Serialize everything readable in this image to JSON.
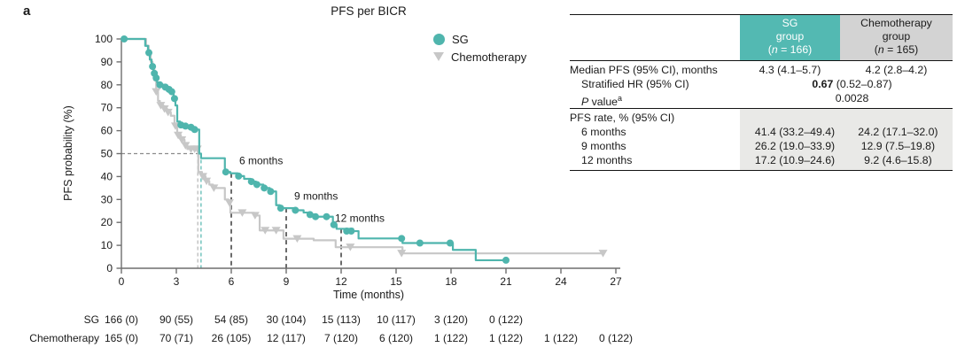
{
  "panel_label": "a",
  "colors": {
    "sg": "#4fb5ad",
    "chemotherapy": "#c7c7c7",
    "sg_header_bg": "#53b9b2",
    "chemo_header_bg": "#d3d3d3",
    "rate_section_shade": "#e9e9e7",
    "landmark_dash": "#3a3a3a",
    "median_dash_gray": "#b5b5b5",
    "median_dash_teal": "#4fb5ad",
    "fifty_pct_dash": "#8c8c8c"
  },
  "chart_data": {
    "type": "line",
    "subtype": "kaplan-meier-step",
    "title": "PFS per BICR",
    "xlabel": "Time (months)",
    "ylabel": "PFS probability (%)",
    "xlim": [
      0,
      27
    ],
    "ylim": [
      0,
      100
    ],
    "xticks": [
      0,
      3,
      6,
      9,
      12,
      15,
      18,
      21,
      24,
      27
    ],
    "yticks": [
      0,
      10,
      20,
      30,
      40,
      50,
      60,
      70,
      80,
      90,
      100
    ],
    "grid": false,
    "legend_position": "top-right-inside",
    "legend": [
      {
        "label": "SG",
        "marker": "circle",
        "color": "#4fb5ad"
      },
      {
        "label": "Chemotherapy",
        "marker": "triangle-down",
        "color": "#c7c7c7"
      }
    ],
    "series": [
      {
        "id": "sg",
        "name": "SG",
        "color": "#4fb5ad",
        "marker": "circle",
        "steps": [
          [
            0,
            100
          ],
          [
            1.3,
            97
          ],
          [
            1.45,
            94
          ],
          [
            1.55,
            91
          ],
          [
            1.65,
            88
          ],
          [
            1.75,
            85
          ],
          [
            1.85,
            83
          ],
          [
            1.95,
            81
          ],
          [
            2.05,
            80
          ],
          [
            2.35,
            79
          ],
          [
            2.55,
            78
          ],
          [
            2.7,
            77
          ],
          [
            2.85,
            74
          ],
          [
            2.95,
            71
          ],
          [
            3.05,
            64
          ],
          [
            3.2,
            62.5
          ],
          [
            3.45,
            62
          ],
          [
            3.75,
            61.5
          ],
          [
            3.95,
            60.5
          ],
          [
            4.25,
            50
          ],
          [
            4.35,
            48
          ],
          [
            5.65,
            42
          ],
          [
            5.95,
            41.4
          ],
          [
            6.35,
            40.2
          ],
          [
            6.7,
            39
          ],
          [
            7.05,
            37.8
          ],
          [
            7.35,
            36.5
          ],
          [
            7.75,
            35
          ],
          [
            8.1,
            33.5
          ],
          [
            8.45,
            27.5
          ],
          [
            8.65,
            26.2
          ],
          [
            9.45,
            25.3
          ],
          [
            9.95,
            24.3
          ],
          [
            10.25,
            23.4
          ],
          [
            10.55,
            22.5
          ],
          [
            11.55,
            19
          ],
          [
            11.75,
            17.2
          ],
          [
            12.65,
            16.2
          ],
          [
            12.95,
            13
          ],
          [
            15.35,
            11
          ],
          [
            18.1,
            8
          ],
          [
            19.35,
            3.5
          ],
          [
            21,
            3.5
          ]
        ],
        "censors": [
          [
            0.15,
            100
          ],
          [
            1.5,
            94
          ],
          [
            1.7,
            88
          ],
          [
            1.8,
            85
          ],
          [
            1.9,
            83
          ],
          [
            2.1,
            80
          ],
          [
            2.4,
            79
          ],
          [
            2.6,
            78
          ],
          [
            2.75,
            77
          ],
          [
            2.9,
            74
          ],
          [
            3.25,
            62.5
          ],
          [
            3.5,
            62
          ],
          [
            3.8,
            61.5
          ],
          [
            4.0,
            60.5
          ],
          [
            5.7,
            42
          ],
          [
            6.4,
            40.2
          ],
          [
            7.1,
            37.8
          ],
          [
            7.4,
            36.5
          ],
          [
            7.8,
            35
          ],
          [
            8.15,
            33.5
          ],
          [
            8.7,
            26.2
          ],
          [
            9.5,
            25.3
          ],
          [
            10.3,
            23.4
          ],
          [
            10.6,
            22.5
          ],
          [
            11.2,
            22.5
          ],
          [
            11.6,
            19
          ],
          [
            12.3,
            16.2
          ],
          [
            12.55,
            16.2
          ],
          [
            15.3,
            13
          ],
          [
            16.3,
            11
          ],
          [
            17.95,
            11
          ],
          [
            21,
            3.5
          ]
        ]
      },
      {
        "id": "chemo",
        "name": "Chemotherapy",
        "color": "#c7c7c7",
        "marker": "triangle-down",
        "steps": [
          [
            0,
            100
          ],
          [
            1.35,
            97
          ],
          [
            1.5,
            93
          ],
          [
            1.6,
            90
          ],
          [
            1.7,
            87
          ],
          [
            1.8,
            82
          ],
          [
            1.9,
            77
          ],
          [
            2.0,
            73
          ],
          [
            2.1,
            71
          ],
          [
            2.3,
            69.5
          ],
          [
            2.5,
            68
          ],
          [
            2.7,
            66.5
          ],
          [
            2.9,
            62
          ],
          [
            3.05,
            58
          ],
          [
            3.25,
            56
          ],
          [
            3.45,
            53.5
          ],
          [
            3.6,
            52
          ],
          [
            4.2,
            42
          ],
          [
            4.4,
            40
          ],
          [
            4.6,
            38
          ],
          [
            4.8,
            36.5
          ],
          [
            5.0,
            35
          ],
          [
            5.65,
            30
          ],
          [
            5.85,
            28.5
          ],
          [
            5.95,
            24.2
          ],
          [
            7.25,
            23
          ],
          [
            7.55,
            16.5
          ],
          [
            8.85,
            12.9
          ],
          [
            10.5,
            12.2
          ],
          [
            11.7,
            9.2
          ],
          [
            15.35,
            6.5
          ],
          [
            26.3,
            6.5
          ]
        ],
        "censors": [
          [
            1.9,
            77
          ],
          [
            2.15,
            71
          ],
          [
            2.35,
            69.5
          ],
          [
            2.55,
            68
          ],
          [
            2.95,
            62
          ],
          [
            3.1,
            58
          ],
          [
            3.3,
            56
          ],
          [
            3.5,
            53.5
          ],
          [
            3.8,
            52
          ],
          [
            4.0,
            52
          ],
          [
            4.15,
            52
          ],
          [
            4.45,
            40
          ],
          [
            4.65,
            38
          ],
          [
            5.05,
            35
          ],
          [
            5.9,
            28.5
          ],
          [
            6.6,
            24.2
          ],
          [
            7.3,
            23
          ],
          [
            7.85,
            16.5
          ],
          [
            8.45,
            16.5
          ],
          [
            9.6,
            12.9
          ],
          [
            12.5,
            9.2
          ],
          [
            15.3,
            6.5
          ],
          [
            26.3,
            6.5
          ]
        ]
      }
    ],
    "reference_lines": {
      "median_horizontal": {
        "y": 50,
        "x_from": 0,
        "x_to": 4.35,
        "color": "#8c8c8c"
      },
      "median_verticals": [
        {
          "x": 4.35,
          "y_top": 50,
          "color": "#4fb5ad"
        },
        {
          "x": 4.17,
          "y_top": 50,
          "color": "#b5b5b5"
        }
      ],
      "landmark_color": "#3a3a3a",
      "landmark_verticals": [
        {
          "x": 6,
          "y_top": 41.4,
          "label": "6 months",
          "label_dx": 9,
          "label_y": 47
        },
        {
          "x": 9,
          "y_top": 26.2,
          "label": "9 months",
          "label_dx": 9,
          "label_y": 31.5
        },
        {
          "x": 12,
          "y_top": 17.2,
          "label": "12 months",
          "label_dx": -7,
          "label_y": 21.8
        }
      ]
    },
    "risk_table": {
      "rows": [
        {
          "label": "SG",
          "values": [
            "166 (0)",
            "90 (55)",
            "54 (85)",
            "30 (104)",
            "15 (113)",
            "10 (117)",
            "3 (120)",
            "0 (122)"
          ]
        },
        {
          "label": "Chemotherapy",
          "values": [
            "165 (0)",
            "70 (71)",
            "26 (105)",
            "12 (117)",
            "7 (120)",
            "6 (120)",
            "1 (122)",
            "1 (122)",
            "1 (122)",
            "0 (122)"
          ]
        }
      ]
    }
  },
  "summary_table": {
    "headers": {
      "sg": {
        "line1": "SG",
        "line2": "group",
        "n_open": "(",
        "n_italic": "n",
        "n_rest": " = 166)"
      },
      "chemo": {
        "line1": "Chemotherapy",
        "line2": "group",
        "n_open": "(",
        "n_italic": "n",
        "n_rest": " = 165)"
      }
    },
    "median_row": {
      "label": "Median PFS (95% CI), months",
      "sg": "4.3 (4.1–5.7)",
      "chemo": "4.2 (2.8–4.2)"
    },
    "hr_row": {
      "label": "Stratified HR (95% CI)",
      "value_bold": "0.67",
      "value_rest": " (0.52–0.87)"
    },
    "p_row": {
      "label_italic": "P",
      "label_rest": " value",
      "label_sup": "a",
      "value": "0.0028"
    },
    "rate_header_row": {
      "label": "PFS rate, % (95% CI)"
    },
    "rate_rows": [
      {
        "label": "6 months",
        "sg": "41.4 (33.2–49.4)",
        "chemo": "24.2 (17.1–32.0)"
      },
      {
        "label": "9 months",
        "sg": "26.2 (19.0–33.9)",
        "chemo": "12.9 (7.5–19.8)"
      },
      {
        "label": "12 months",
        "sg": "17.2 (10.9–24.6)",
        "chemo": "9.2 (4.6–15.8)"
      }
    ]
  }
}
